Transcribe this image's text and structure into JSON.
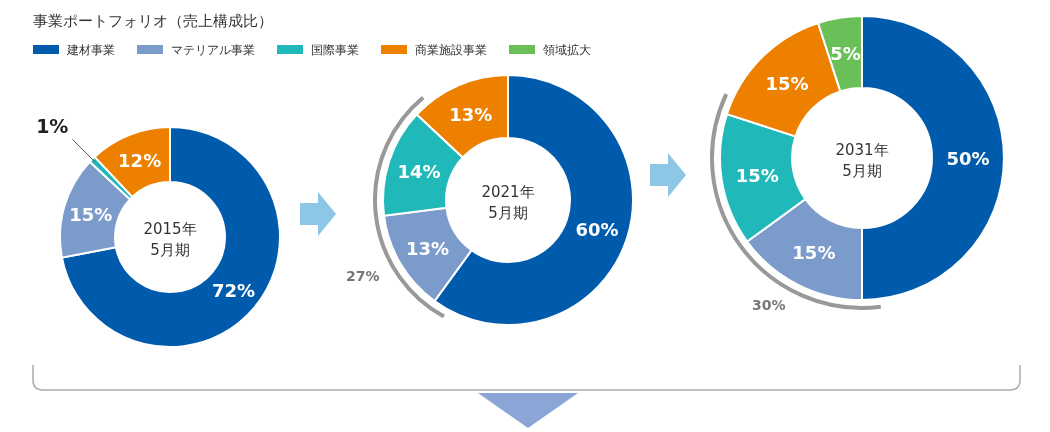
{
  "chart_data": [
    {
      "type": "other",
      "title": "事業ポートフォリオ（売上構成比）"
    },
    {
      "type": "donut",
      "title": "2015年",
      "subtitle": "5月期",
      "categories": [
        null,
        null,
        null,
        null
      ],
      "values": [
        72,
        15,
        1,
        12
      ],
      "value_labels": [
        "72%",
        "15%",
        "1%",
        "12%"
      ],
      "colors": [
        "#005bac",
        "#7b9bcb",
        "#20b8b8",
        "#ee8000"
      ],
      "legend": false
    },
    {
      "type": "donut",
      "title": "2021年",
      "subtitle": "5月期",
      "categories": [
        null,
        null,
        null,
        null
      ],
      "values": [
        60,
        13,
        14,
        13
      ],
      "value_labels": [
        "60%",
        "13%",
        "14%",
        "13%"
      ],
      "colors": [
        "#005bac",
        "#7b9bcb",
        "#20b8b8",
        "#ee8000"
      ],
      "legend": false,
      "annotations": [
        "27%"
      ]
    },
    {
      "type": "donut",
      "title": "2031年",
      "subtitle": "5月期",
      "categories": [
        "建材事業",
        "マテリアル事業",
        "国際事業",
        "商業施設事業",
        "領域拡大"
      ],
      "values": [
        50,
        15,
        15,
        15,
        5
      ],
      "value_labels": [
        "50%",
        "15%",
        "15%",
        "15%",
        "5%"
      ],
      "colors": [
        "#005bac",
        "#7b9bcb",
        "#20b8b8",
        "#ee8000",
        "#6bbf59"
      ],
      "legend": "top",
      "annotations": [
        "30%"
      ]
    }
  ]
}
